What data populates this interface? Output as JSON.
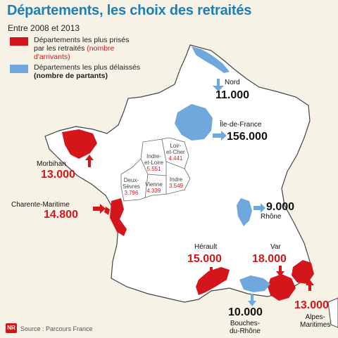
{
  "title": "Départements, les choix des retraités",
  "subtitle": "Entre 2008 et 2013",
  "legend": {
    "red_line1": "Départements les plus prisés",
    "red_line2_prefix": "par les retraités ",
    "red_line2_suffix": "(nombre d'arrivants)",
    "blue_line1": "Départements les plus délaissés",
    "blue_line2": "(nombre de partants)"
  },
  "colors": {
    "arrivals": "#d4161c",
    "departures": "#6fa8dc",
    "land": "#ffffff",
    "border": "#444444"
  },
  "regions": {
    "nord": {
      "name": "Nord",
      "value": "11.000"
    },
    "idf": {
      "name": "Île-de-France",
      "value": "156.000"
    },
    "rhone": {
      "name": "Rhône",
      "value": "9.000"
    },
    "bdr": {
      "name": "Bouches-du-Rhône",
      "name1": "Bouches-",
      "name2": "du-Rhône",
      "value": "10.000"
    },
    "morbihan": {
      "name": "Morbihan",
      "value": "13.000"
    },
    "charente": {
      "name": "Charente-Maritime",
      "value": "14.800"
    },
    "herault": {
      "name": "Hérault",
      "value": "15.000"
    },
    "var": {
      "name": "Var",
      "value": "18.000"
    },
    "alpes": {
      "name": "Alpes-Maritimes",
      "name1": "Alpes-",
      "name2": "Maritimes",
      "value": "13.000"
    }
  },
  "center": {
    "loir_cher": {
      "name1": "Loir-",
      "name2": "et-Cher",
      "value": "4.441"
    },
    "indre_loire": {
      "name1": "Indre-",
      "name2": "et-Loire",
      "value": "5.551"
    },
    "deux_sevres": {
      "name1": "Deux-",
      "name2": "Sèvres",
      "value": "3.796"
    },
    "vienne": {
      "name1": "Vienne",
      "value": "4.339"
    },
    "indre": {
      "name1": "Indre",
      "value": "3.549"
    }
  },
  "source": "Source : Parcours France",
  "logo": "NR"
}
